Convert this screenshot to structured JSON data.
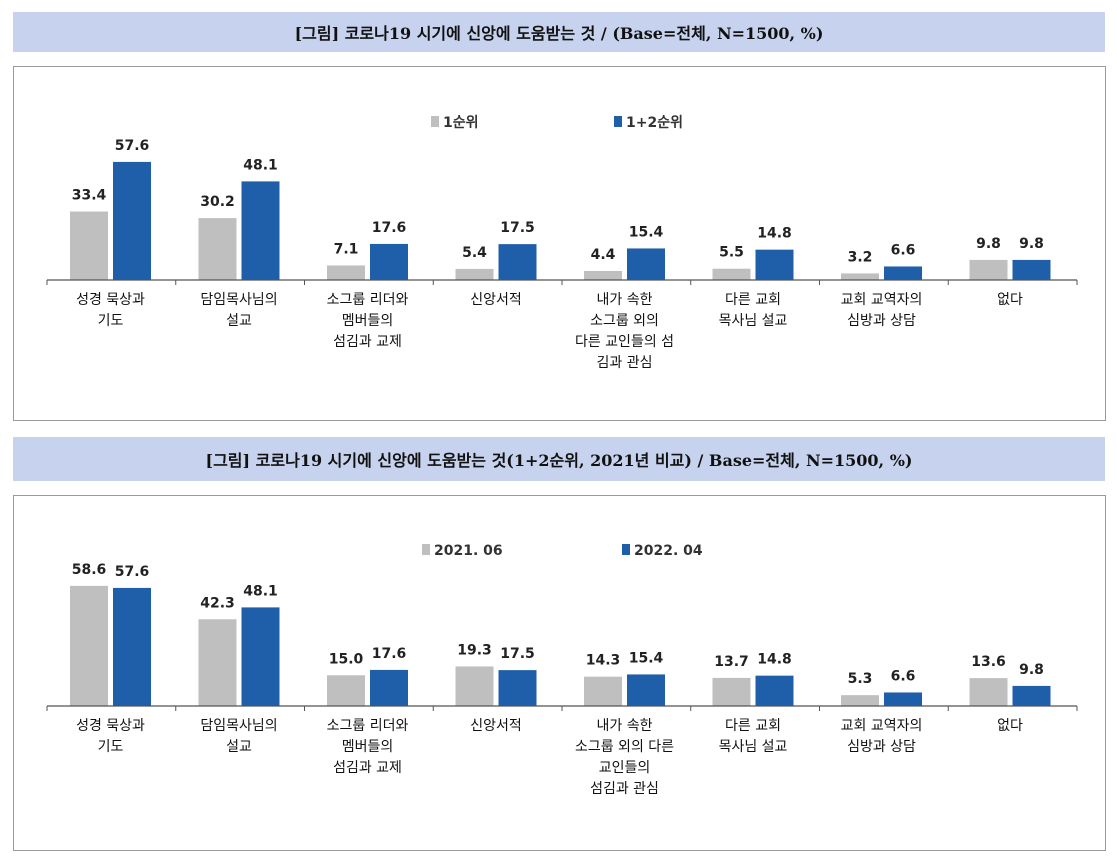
{
  "chart_data": [
    {
      "type": "bar",
      "title": "[그림] 코로나19 시기에 신앙에 도움받는 것 / (Base=전체, N=1500, %)",
      "categories": [
        [
          "성경 묵상과",
          "기도"
        ],
        [
          "담임목사님의",
          "설교"
        ],
        [
          "소그룹 리더와",
          "멤버들의",
          "섬김과 교제"
        ],
        [
          "신앙서적"
        ],
        [
          "내가 속한",
          "소그룹 외의",
          "다른 교인들의 섬",
          "김과 관심"
        ],
        [
          "다른 교회",
          "목사님 설교"
        ],
        [
          "교회 교역자의",
          "심방과 상담"
        ],
        [
          "없다"
        ]
      ],
      "series": [
        {
          "name": "1순위",
          "color": "#bfbfbf",
          "values": [
            33.4,
            30.2,
            7.1,
            5.4,
            4.4,
            5.5,
            3.2,
            9.8
          ]
        },
        {
          "name": "1+2순위",
          "color": "#1f5faa",
          "values": [
            57.6,
            48.1,
            17.6,
            17.5,
            15.4,
            14.8,
            6.6,
            9.8
          ]
        }
      ],
      "ylim": [
        0,
        60
      ],
      "legend": "top-center",
      "grid": false
    },
    {
      "type": "bar",
      "title": "[그림] 코로나19 시기에 신앙에 도움받는 것(1+2순위, 2021년 비교) / Base=전체, N=1500, %)",
      "categories": [
        [
          "성경 묵상과",
          "기도"
        ],
        [
          "담임목사님의",
          "설교"
        ],
        [
          "소그룹 리더와",
          "멤버들의",
          "섬김과 교제"
        ],
        [
          "신앙서적"
        ],
        [
          "내가 속한",
          "소그룹 외의 다른",
          "교인들의",
          "섬김과 관심"
        ],
        [
          "다른 교회",
          "목사님 설교"
        ],
        [
          "교회 교역자의",
          "심방과 상담"
        ],
        [
          "없다"
        ]
      ],
      "series": [
        {
          "name": "2021. 06",
          "color": "#bfbfbf",
          "values": [
            58.6,
            42.3,
            15.0,
            19.3,
            14.3,
            13.7,
            5.3,
            13.6
          ]
        },
        {
          "name": "2022. 04",
          "color": "#1f5faa",
          "values": [
            57.6,
            48.1,
            17.6,
            17.5,
            15.4,
            14.8,
            6.6,
            9.8
          ]
        }
      ],
      "ylim": [
        0,
        60
      ],
      "legend": "top-center",
      "grid": false
    }
  ]
}
